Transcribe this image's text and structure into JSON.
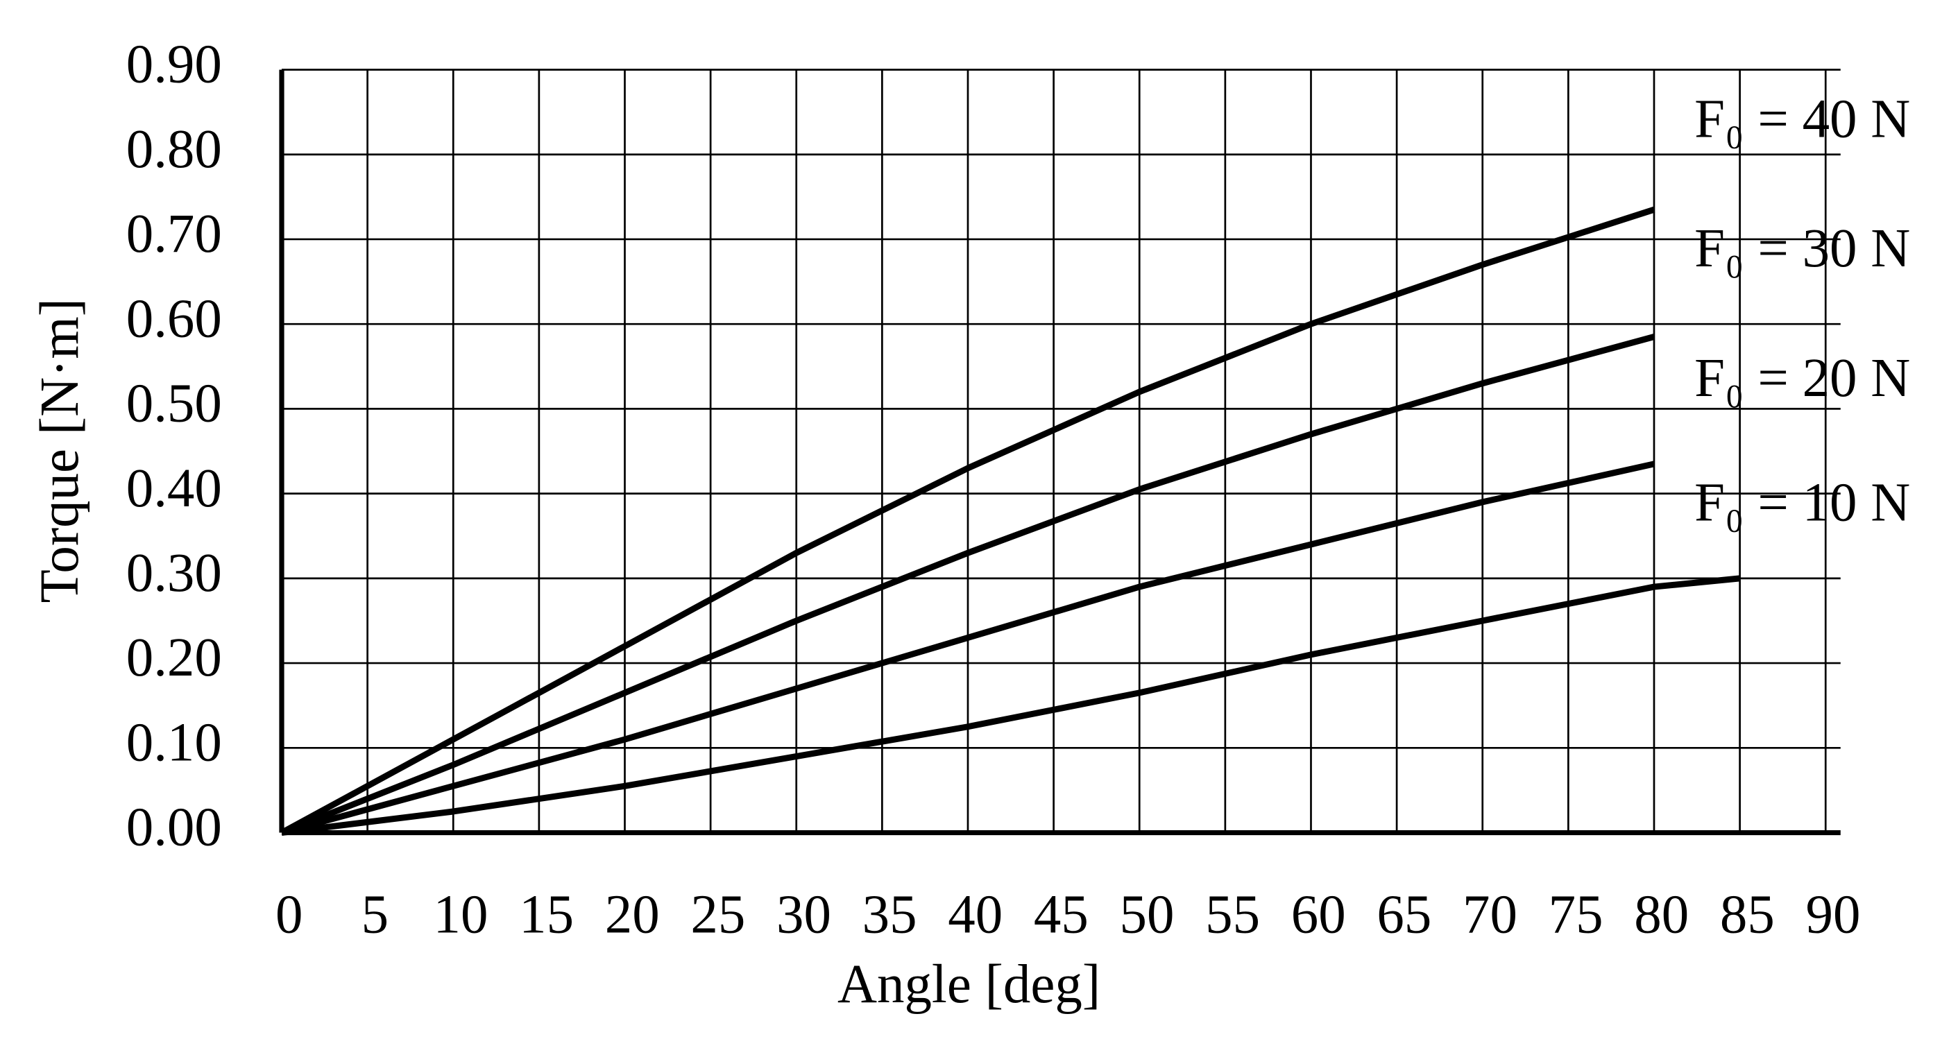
{
  "chart_data": {
    "type": "line",
    "x_label": "Angle [deg]",
    "y_label": "Torque [N·m]",
    "x": [
      0,
      10,
      20,
      30,
      40,
      50,
      60,
      70,
      80,
      85
    ],
    "series": [
      {
        "name": "F₀ = 40 N",
        "color": "#000000",
        "values": [
          0,
          0.11,
          0.22,
          0.33,
          0.43,
          0.52,
          0.6,
          0.67,
          0.735,
          null
        ]
      },
      {
        "name": "F₀ = 30 N",
        "color": "#000000",
        "values": [
          0,
          0.08,
          0.165,
          0.25,
          0.33,
          0.405,
          0.47,
          0.53,
          0.585,
          null
        ]
      },
      {
        "name": "F₀ = 20 N",
        "color": "#000000",
        "values": [
          0,
          0.055,
          0.11,
          0.17,
          0.23,
          0.29,
          0.34,
          0.39,
          0.435,
          null
        ]
      },
      {
        "name": "F₀ = 10 N",
        "color": "#000000",
        "values": [
          0,
          0.025,
          0.055,
          0.09,
          0.125,
          0.165,
          0.21,
          0.25,
          0.29,
          0.3
        ]
      }
    ],
    "xlim": [
      0,
      90
    ],
    "xticks": [
      0,
      5,
      10,
      15,
      20,
      25,
      30,
      35,
      40,
      45,
      50,
      55,
      60,
      65,
      70,
      75,
      80,
      85,
      90
    ],
    "ylim": [
      0,
      0.9
    ],
    "yticks": [
      {
        "value": 0,
        "label": "0.00"
      },
      {
        "value": 0.1,
        "label": "0.10"
      },
      {
        "value": 0.2,
        "label": "0.20"
      },
      {
        "value": 0.3,
        "label": "0.30"
      },
      {
        "value": 0.4,
        "label": "0.40"
      },
      {
        "value": 0.5,
        "label": "0.50"
      },
      {
        "value": 0.6,
        "label": "0.60"
      },
      {
        "value": 0.7,
        "label": "0.70"
      },
      {
        "value": 0.8,
        "label": "0.80"
      },
      {
        "value": 0.9,
        "label": "0.90"
      }
    ],
    "grid": true
  }
}
